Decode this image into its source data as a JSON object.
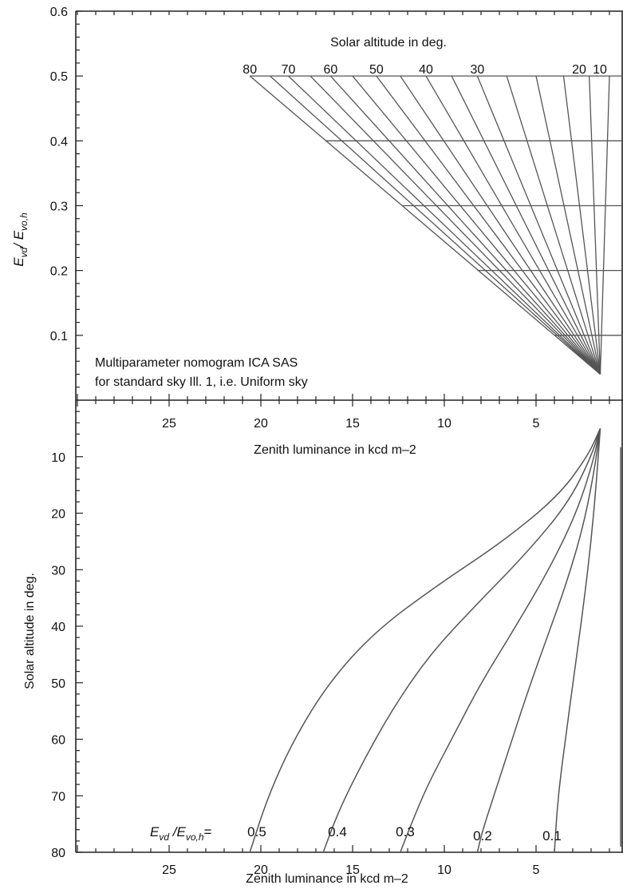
{
  "colors": {
    "axis": "#222222",
    "lines": "#555555",
    "text": "#111111",
    "background": "#ffffff"
  },
  "chart_data": [
    {
      "type": "line",
      "panel": "top",
      "title": "Solar altitude in deg.",
      "ylabel": "E_vd / E_vo,h",
      "ylabel_parts": {
        "main": "E",
        "sub1": "vd",
        "sep": "/ E",
        "sub2": "vo,h"
      },
      "note_lines": [
        "Multiparameter nomogram ICA SAS",
        "for standard sky Ill. 1, i.e. Uniform sky"
      ],
      "ylim": [
        0,
        0.6
      ],
      "y_ticks": [
        {
          "v": 0.1,
          "label": "0.1"
        },
        {
          "v": 0.2,
          "label": "0.2"
        },
        {
          "v": 0.3,
          "label": "0.3"
        },
        {
          "v": 0.4,
          "label": "0.4"
        },
        {
          "v": 0.5,
          "label": "0.5"
        },
        {
          "v": 0.6,
          "label": "0.6"
        }
      ],
      "altitude_labels": [
        "80",
        "70",
        "60",
        "50",
        "40",
        "30",
        "20",
        "10"
      ],
      "zenith_luminance_at_top": [
        {
          "altitude": 80,
          "z": 20.6
        },
        {
          "altitude": 75,
          "z": 19.5
        },
        {
          "altitude": 70,
          "z": 18.5
        },
        {
          "altitude": 65,
          "z": 17.3
        },
        {
          "altitude": 60,
          "z": 16.2
        },
        {
          "altitude": 55,
          "z": 15.0
        },
        {
          "altitude": 50,
          "z": 13.7
        },
        {
          "altitude": 45,
          "z": 12.4
        },
        {
          "altitude": 40,
          "z": 11.0
        },
        {
          "altitude": 35,
          "z": 9.6
        },
        {
          "altitude": 30,
          "z": 8.2
        },
        {
          "altitude": 25,
          "z": 6.6
        },
        {
          "altitude": 20,
          "z": 5.0
        },
        {
          "altitude": 15,
          "z": 3.5
        },
        {
          "altitude": 10,
          "z": 2.1
        },
        {
          "altitude": 5,
          "z": 1.0
        }
      ],
      "converge_at": {
        "z": 1.5,
        "y": 0.04
      },
      "horizontal_lines": [
        {
          "y": 0.5,
          "x_from": 20.6
        },
        {
          "y": 0.4,
          "x_from": 16.5
        },
        {
          "y": 0.3,
          "x_from": 12.3
        },
        {
          "y": 0.2,
          "x_from": 8.2
        },
        {
          "y": 0.1,
          "x_from": 4.0
        }
      ]
    },
    {
      "type": "line",
      "panel": "bottom",
      "xlabel_upper": "Zenith luminance in kcd m–2",
      "xlabel_lower": "Zenith luminance in kcd m–2",
      "ylabel": "Solar altitude in deg.",
      "xlim": [
        30,
        -2
      ],
      "ylim": [
        0,
        80
      ],
      "x_ticks": [
        {
          "v": 25,
          "label": "25"
        },
        {
          "v": 20,
          "label": "20"
        },
        {
          "v": 15,
          "label": "15"
        },
        {
          "v": 10,
          "label": "10"
        },
        {
          "v": 5,
          "label": "5"
        }
      ],
      "y_ticks": [
        {
          "v": 10,
          "label": "10"
        },
        {
          "v": 20,
          "label": "20"
        },
        {
          "v": 30,
          "label": "30"
        },
        {
          "v": 40,
          "label": "40"
        },
        {
          "v": 50,
          "label": "50"
        },
        {
          "v": 60,
          "label": "60"
        },
        {
          "v": 70,
          "label": "70"
        },
        {
          "v": 80,
          "label": "80"
        }
      ],
      "curve_label_prefix": {
        "main": "E",
        "sub1": "vd",
        "sep": " /E",
        "sub2": "vo,h",
        "eq": "="
      },
      "series": [
        {
          "name": "0.5",
          "points": [
            [
              1.5,
              5
            ],
            [
              2.2,
              10
            ],
            [
              3.8,
              17
            ],
            [
              6.8,
              25
            ],
            [
              10.5,
              33
            ],
            [
              13.8,
              41
            ],
            [
              16.3,
              50
            ],
            [
              18.2,
              60
            ],
            [
              19.6,
              70
            ],
            [
              20.6,
              80
            ]
          ]
        },
        {
          "name": "0.4",
          "points": [
            [
              1.5,
              5
            ],
            [
              2.0,
              10
            ],
            [
              3.2,
              18
            ],
            [
              5.5,
              27
            ],
            [
              8.2,
              36
            ],
            [
              10.8,
              45
            ],
            [
              12.9,
              55
            ],
            [
              14.6,
              65
            ],
            [
              15.8,
              73
            ],
            [
              16.6,
              80
            ]
          ]
        },
        {
          "name": "0.3",
          "points": [
            [
              1.5,
              5
            ],
            [
              1.9,
              11
            ],
            [
              2.8,
              20
            ],
            [
              4.3,
              30
            ],
            [
              6.1,
              40
            ],
            [
              8.0,
              50
            ],
            [
              9.6,
              60
            ],
            [
              10.9,
              68
            ],
            [
              11.8,
              75
            ],
            [
              12.4,
              80
            ]
          ]
        },
        {
          "name": "0.2",
          "points": [
            [
              1.5,
              5
            ],
            [
              1.8,
              12
            ],
            [
              2.4,
              22
            ],
            [
              3.3,
              32
            ],
            [
              4.4,
              42
            ],
            [
              5.5,
              52
            ],
            [
              6.5,
              62
            ],
            [
              7.3,
              70
            ],
            [
              7.9,
              76
            ],
            [
              8.2,
              80
            ]
          ]
        },
        {
          "name": "0.1",
          "points": [
            [
              1.5,
              5
            ],
            [
              1.7,
              14
            ],
            [
              2.0,
              25
            ],
            [
              2.4,
              36
            ],
            [
              2.9,
              48
            ],
            [
              3.4,
              60
            ],
            [
              3.8,
              70
            ],
            [
              4.0,
              80
            ]
          ]
        }
      ]
    }
  ]
}
